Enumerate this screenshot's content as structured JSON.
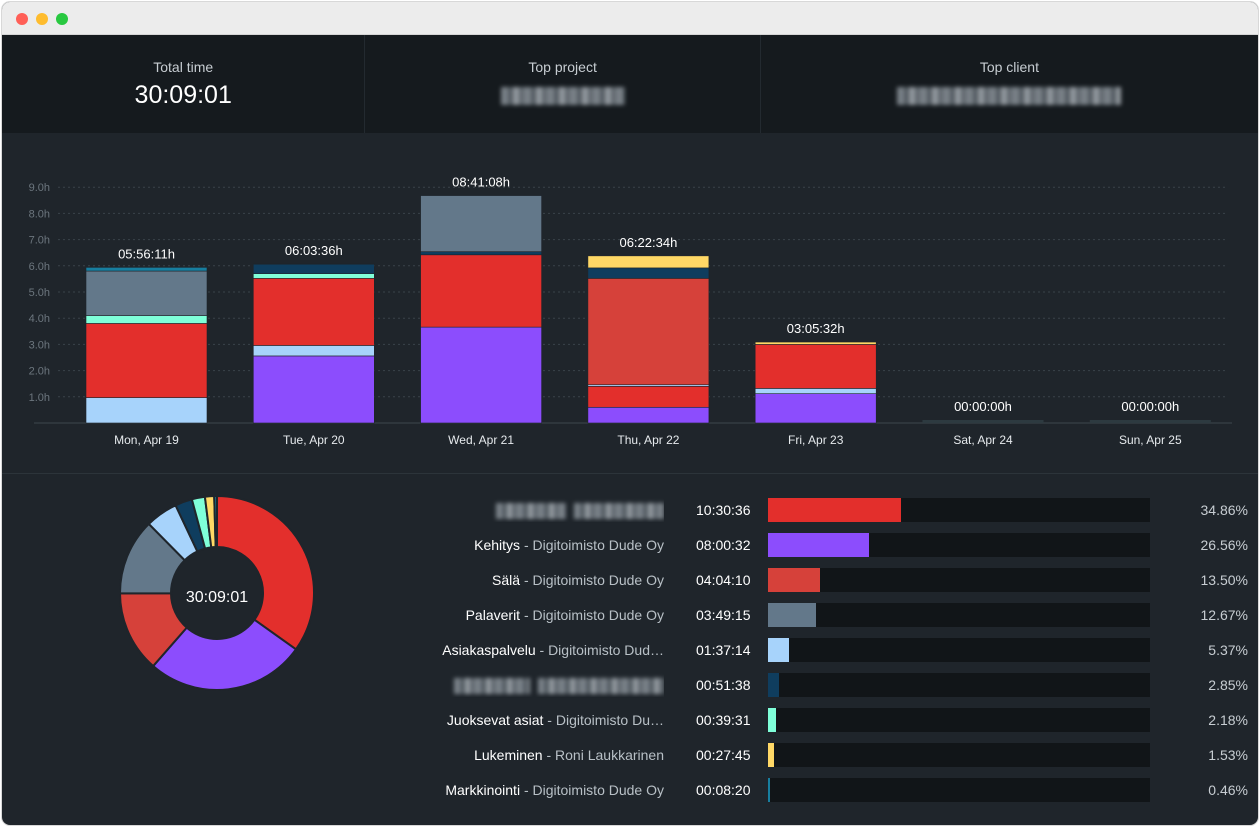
{
  "summary": {
    "total_time_label": "Total time",
    "total_time_value": "30:09:01",
    "top_project_label": "Top project",
    "top_client_label": "Top client"
  },
  "colors": {
    "seg_light_blue": "#a7d3fb",
    "seg_red": "#e32f2c",
    "seg_cyan": "#7fffd9",
    "seg_slate": "#63788a",
    "seg_navy": "#0f3d5e",
    "seg_purple": "#8c4dfd",
    "seg_crimson": "#d6413a",
    "seg_yellow": "#ffd866",
    "seg_teal": "#177e9f"
  },
  "chart_data": [
    {
      "type": "bar",
      "stacked": true,
      "categories": [
        "Mon, Apr 19",
        "Tue, Apr 20",
        "Wed, Apr 21",
        "Thu, Apr 22",
        "Fri, Apr 23",
        "Sat, Apr 24",
        "Sun, Apr 25"
      ],
      "totals_labels": [
        "05:56:11h",
        "06:03:36h",
        "08:41:08h",
        "06:22:34h",
        "03:05:32h",
        "00:00:00h",
        "00:00:00h"
      ],
      "y_ticks": [
        "1.0h",
        "2.0h",
        "3.0h",
        "4.0h",
        "5.0h",
        "6.0h",
        "7.0h",
        "8.0h",
        "9.0h"
      ],
      "ylim": [
        0,
        9
      ],
      "grid": true,
      "stacks": [
        [
          {
            "color": "#a7d3fb",
            "value": 0.97
          },
          {
            "color": "#e32f2c",
            "value": 2.83
          },
          {
            "color": "#7fffd9",
            "value": 0.3
          },
          {
            "color": "#63788a",
            "value": 1.7
          },
          {
            "color": "#177e9f",
            "value": 0.14
          }
        ],
        [
          {
            "color": "#8c4dfd",
            "value": 2.56
          },
          {
            "color": "#a7d3fb",
            "value": 0.4
          },
          {
            "color": "#e32f2c",
            "value": 2.56
          },
          {
            "color": "#7fffd9",
            "value": 0.18
          },
          {
            "color": "#0f3d5e",
            "value": 0.36
          }
        ],
        [
          {
            "color": "#8c4dfd",
            "value": 3.66
          },
          {
            "color": "#e32f2c",
            "value": 2.76
          },
          {
            "color": "#0f3d5e",
            "value": 0.12
          },
          {
            "color": "#63788a",
            "value": 2.14
          }
        ],
        [
          {
            "color": "#8c4dfd",
            "value": 0.6
          },
          {
            "color": "#e32f2c",
            "value": 0.8
          },
          {
            "color": "#a7d3fb",
            "value": 0.06
          },
          {
            "color": "#d6413a",
            "value": 4.06
          },
          {
            "color": "#0f3d5e",
            "value": 0.4
          },
          {
            "color": "#ffd866",
            "value": 0.46
          }
        ],
        [
          {
            "color": "#8c4dfd",
            "value": 1.12
          },
          {
            "color": "#a7d3fb",
            "value": 0.2
          },
          {
            "color": "#e32f2c",
            "value": 1.68
          },
          {
            "color": "#ffd866",
            "value": 0.09
          }
        ],
        [],
        []
      ]
    },
    {
      "type": "pie",
      "donut": true,
      "center_label": "30:09:01",
      "slices": [
        {
          "value": 34.86,
          "color": "#e32f2c"
        },
        {
          "value": 26.56,
          "color": "#8c4dfd"
        },
        {
          "value": 13.5,
          "color": "#d6413a"
        },
        {
          "value": 12.67,
          "color": "#63788a"
        },
        {
          "value": 5.37,
          "color": "#a7d3fb"
        },
        {
          "value": 2.85,
          "color": "#0f3d5e"
        },
        {
          "value": 2.18,
          "color": "#7fffd9"
        },
        {
          "value": 1.53,
          "color": "#ffd866"
        },
        {
          "value": 0.46,
          "color": "#177e9f"
        }
      ]
    }
  ],
  "breakdown": {
    "rows": [
      {
        "project": "",
        "client": "",
        "blurred": true,
        "time": "10:30:36",
        "percent": "34.86%",
        "fraction": 0.3486,
        "color": "#e32f2c"
      },
      {
        "project": "Kehitys",
        "client": " - Digitoimisto Dude Oy",
        "blurred": false,
        "time": "08:00:32",
        "percent": "26.56%",
        "fraction": 0.2656,
        "color": "#8c4dfd"
      },
      {
        "project": "Sälä",
        "client": " - Digitoimisto Dude Oy",
        "blurred": false,
        "time": "04:04:10",
        "percent": "13.50%",
        "fraction": 0.135,
        "color": "#d6413a"
      },
      {
        "project": "Palaverit",
        "client": " - Digitoimisto Dude Oy",
        "blurred": false,
        "time": "03:49:15",
        "percent": "12.67%",
        "fraction": 0.1267,
        "color": "#63788a"
      },
      {
        "project": "Asiakaspalvelu",
        "client": " - Digitoimisto Dud…",
        "blurred": false,
        "time": "01:37:14",
        "percent": "5.37%",
        "fraction": 0.0537,
        "color": "#a7d3fb"
      },
      {
        "project": "",
        "client": "",
        "blurred": true,
        "time": "00:51:38",
        "percent": "2.85%",
        "fraction": 0.0285,
        "color": "#0f3d5e"
      },
      {
        "project": "Juoksevat asiat",
        "client": " - Digitoimisto Du…",
        "blurred": false,
        "time": "00:39:31",
        "percent": "2.18%",
        "fraction": 0.0218,
        "color": "#7fffd9"
      },
      {
        "project": "Lukeminen",
        "client": " - Roni Laukkarinen",
        "blurred": false,
        "time": "00:27:45",
        "percent": "1.53%",
        "fraction": 0.0153,
        "color": "#ffd866"
      },
      {
        "project": "Markkinointi",
        "client": " - Digitoimisto Dude Oy",
        "blurred": false,
        "time": "00:08:20",
        "percent": "0.46%",
        "fraction": 0.0046,
        "color": "#177e9f"
      }
    ]
  }
}
